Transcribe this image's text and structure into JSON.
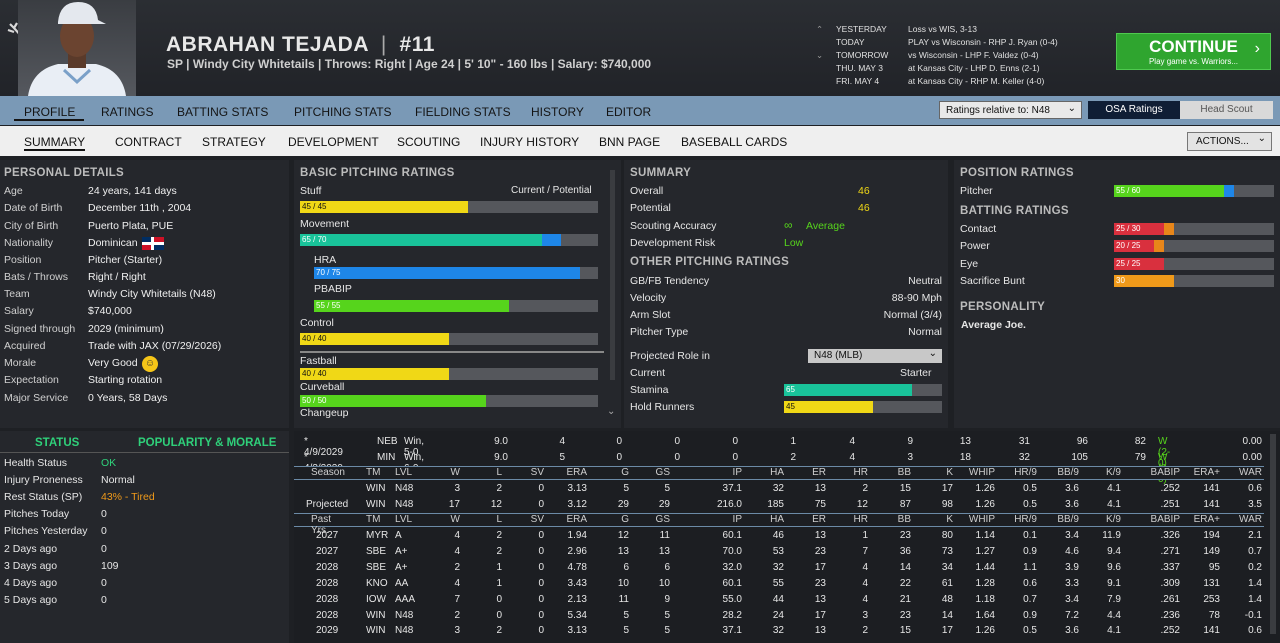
{
  "header": {
    "name": "ABRAHAN TEJADA",
    "number": "#11",
    "subtitle": "SP | Windy City Whitetails  |  Throws: Right  |  Age 24  |  5' 10\" - 160 lbs  |  Salary: $740,000",
    "sep": "|"
  },
  "schedule": [
    {
      "day": "YESTERDAY",
      "desc": "Loss vs WIS, 3-13"
    },
    {
      "day": "TODAY",
      "desc": "PLAY vs Wisconsin - RHP J. Ryan (0-4)"
    },
    {
      "day": "TOMORROW",
      "desc": "vs Wisconsin - LHP F. Valdez (0-4)"
    },
    {
      "day": "THU. MAY 3",
      "desc": "at Kansas City - LHP D. Enns (2-1)"
    },
    {
      "day": "FRI. MAY 4",
      "desc": "at Kansas City - RHP M. Keller (4-0)"
    }
  ],
  "continue": {
    "label": "CONTINUE",
    "sub": "Play game vs. Warriors..."
  },
  "nav1": [
    "PROFILE",
    "RATINGS",
    "BATTING STATS",
    "PITCHING STATS",
    "FIELDING STATS",
    "HISTORY",
    "EDITOR"
  ],
  "ratings_rel": "Ratings relative to: N48",
  "osa": "OSA Ratings",
  "head_scout": "Head Scout",
  "nav2": [
    "SUMMARY",
    "CONTRACT",
    "STRATEGY",
    "DEVELOPMENT",
    "SCOUTING",
    "INJURY HISTORY",
    "BNN PAGE",
    "BASEBALL CARDS"
  ],
  "actions": "ACTIONS...",
  "personal": {
    "title": "PERSONAL DETAILS",
    "rows": [
      {
        "l": "Age",
        "v": "24 years, 141 days"
      },
      {
        "l": "Date of Birth",
        "v": "December 11th , 2004"
      },
      {
        "l": "City of Birth",
        "v": "Puerto Plata, PUE"
      },
      {
        "l": "Nationality",
        "v": "Dominican"
      },
      {
        "l": "Position",
        "v": "Pitcher (Starter)"
      },
      {
        "l": "Bats / Throws",
        "v": "Right / Right"
      },
      {
        "l": "Team",
        "v": "Windy City Whitetails (N48)"
      },
      {
        "l": "Salary",
        "v": "$740,000"
      },
      {
        "l": "Signed through",
        "v": "2029 (minimum)"
      },
      {
        "l": "Acquired",
        "v": "Trade with JAX (07/29/2026)"
      },
      {
        "l": "Morale",
        "v": "Very Good"
      },
      {
        "l": "Expectation",
        "v": "Starting rotation"
      },
      {
        "l": "Major Service",
        "v": "0 Years, 58 Days"
      }
    ]
  },
  "pitching": {
    "title": "BASIC PITCHING RATINGS",
    "cp": "Current / Potential",
    "bars": [
      {
        "name": "Stuff",
        "label": "45 / 45",
        "cur": 45,
        "pot": 45,
        "color": "#f0d816"
      },
      {
        "name": "Movement",
        "label": "65 / 70",
        "cur": 65,
        "pot": 70,
        "color": "#19c39a"
      },
      {
        "name": "HRA",
        "label": "70 / 75",
        "cur": 70,
        "pot": 75,
        "color": "#1e86e8"
      },
      {
        "name": "PBABIP",
        "label": "55 / 55",
        "cur": 55,
        "pot": 55,
        "color": "#56d41c"
      },
      {
        "name": "Control",
        "label": "40 / 40",
        "cur": 40,
        "pot": 40,
        "color": "#f0d816"
      },
      {
        "name": "Fastball",
        "label": "40 / 40",
        "cur": 40,
        "pot": 40,
        "color": "#f0d816"
      },
      {
        "name": "Curveball",
        "label": "50 / 50",
        "cur": 50,
        "pot": 50,
        "color": "#56d41c"
      },
      {
        "name": "Changeup",
        "label": "",
        "cur": 0,
        "pot": 0,
        "color": "#f0d816"
      }
    ]
  },
  "summary": {
    "title": "SUMMARY",
    "overall_l": "Overall",
    "overall": "46",
    "potential_l": "Potential",
    "potential": "46",
    "acc_l": "Scouting Accuracy",
    "acc": "Average",
    "risk_l": "Development Risk",
    "risk": "Low",
    "other_title": "OTHER PITCHING RATINGS",
    "other": [
      {
        "l": "GB/FB Tendency",
        "v": "Neutral"
      },
      {
        "l": "Velocity",
        "v": "88-90 Mph"
      },
      {
        "l": "Arm Slot",
        "v": "Normal (3/4)"
      },
      {
        "l": "Pitcher Type",
        "v": "Normal"
      }
    ],
    "proj_l": "Projected Role in",
    "proj": "N48 (MLB)",
    "cur_l": "Current",
    "cur": "Starter",
    "stamina_l": "Stamina",
    "stamina": "65",
    "stamina_v": 65,
    "hold_l": "Hold Runners",
    "hold": "45",
    "hold_v": 45
  },
  "position": {
    "title": "POSITION RATINGS",
    "pitcher_l": "Pitcher",
    "pitcher": "55 / 60",
    "pcur": 55,
    "ppot": 60,
    "bat_title": "BATTING RATINGS",
    "bat": [
      {
        "l": "Contact",
        "v": "25 / 30",
        "cur": 25,
        "pot": 30
      },
      {
        "l": "Power",
        "v": "20 / 25",
        "cur": 20,
        "pot": 25
      },
      {
        "l": "Eye",
        "v": "25 / 25",
        "cur": 25,
        "pot": 25
      },
      {
        "l": "Sacrifice Bunt",
        "v": "30",
        "cur": 30,
        "pot": 30
      }
    ],
    "pers_title": "PERSONALITY",
    "pers": "Average Joe."
  },
  "status": {
    "tab1": "STATUS",
    "tab2": "POPULARITY & MORALE",
    "rows": [
      {
        "l": "Health Status",
        "v": "OK",
        "c": "#2fd07a"
      },
      {
        "l": "Injury Proneness",
        "v": "Normal",
        "c": "#e6e6e6"
      },
      {
        "l": "Rest Status (SP)",
        "v": "43% - Tired",
        "c": "#f09a1a"
      },
      {
        "l": "Pitches Today",
        "v": "0",
        "c": "#e6e6e6"
      },
      {
        "l": "Pitches Yesterday",
        "v": "0",
        "c": "#e6e6e6"
      },
      {
        "l": "2 Days ago",
        "v": "0",
        "c": "#e6e6e6"
      },
      {
        "l": "3 Days ago",
        "v": "109",
        "c": "#e6e6e6"
      },
      {
        "l": "4 Days ago",
        "v": "0",
        "c": "#e6e6e6"
      },
      {
        "l": "5 Days ago",
        "v": "0",
        "c": "#e6e6e6"
      }
    ]
  },
  "games": [
    [
      "* 4/9/2029",
      "NEB",
      "Win, 5-0",
      "9.0",
      "4",
      "0",
      "0",
      "0",
      "1",
      "4",
      "9",
      "13",
      "31",
      "96",
      "82",
      "W (2-0)",
      "0.00"
    ],
    [
      "* 4/3/2029",
      "MIN",
      "Win, 6-0",
      "9.0",
      "5",
      "0",
      "0",
      "0",
      "2",
      "4",
      "3",
      "18",
      "32",
      "105",
      "79",
      "W (1-0)",
      "0.00"
    ]
  ],
  "cols": [
    "TM",
    "LVL",
    "W",
    "L",
    "SV",
    "ERA",
    "G",
    "GS",
    "IP",
    "HA",
    "ER",
    "HR",
    "BB",
    "K",
    "WHIP",
    "HR/9",
    "BB/9",
    "K/9",
    "BABIP",
    "ERA+",
    "WAR"
  ],
  "season_label": "Season",
  "past_label": "Past Yrs.",
  "season": [
    [
      "",
      "WIN",
      "N48",
      "3",
      "2",
      "0",
      "3.13",
      "5",
      "5",
      "37.1",
      "32",
      "13",
      "2",
      "15",
      "17",
      "1.26",
      "0.5",
      "3.6",
      "4.1",
      ".252",
      "141",
      "0.6"
    ],
    [
      "Projected",
      "WIN",
      "N48",
      "17",
      "12",
      "0",
      "3.12",
      "29",
      "29",
      "216.0",
      "185",
      "75",
      "12",
      "87",
      "98",
      "1.26",
      "0.5",
      "3.6",
      "4.1",
      ".251",
      "141",
      "3.5"
    ]
  ],
  "past": [
    [
      "2027",
      "MYR",
      "A",
      "4",
      "2",
      "0",
      "1.94",
      "12",
      "11",
      "60.1",
      "46",
      "13",
      "1",
      "23",
      "80",
      "1.14",
      "0.1",
      "3.4",
      "11.9",
      ".326",
      "194",
      "2.1"
    ],
    [
      "2027",
      "SBE",
      "A+",
      "4",
      "2",
      "0",
      "2.96",
      "13",
      "13",
      "70.0",
      "53",
      "23",
      "7",
      "36",
      "73",
      "1.27",
      "0.9",
      "4.6",
      "9.4",
      ".271",
      "149",
      "0.7"
    ],
    [
      "2028",
      "SBE",
      "A+",
      "2",
      "1",
      "0",
      "4.78",
      "6",
      "6",
      "32.0",
      "32",
      "17",
      "4",
      "14",
      "34",
      "1.44",
      "1.1",
      "3.9",
      "9.6",
      ".337",
      "95",
      "0.2"
    ],
    [
      "2028",
      "KNO",
      "AA",
      "4",
      "1",
      "0",
      "3.43",
      "10",
      "10",
      "60.1",
      "55",
      "23",
      "4",
      "22",
      "61",
      "1.28",
      "0.6",
      "3.3",
      "9.1",
      ".309",
      "131",
      "1.4"
    ],
    [
      "2028",
      "IOW",
      "AAA",
      "7",
      "0",
      "0",
      "2.13",
      "11",
      "9",
      "55.0",
      "44",
      "13",
      "4",
      "21",
      "48",
      "1.18",
      "0.7",
      "3.4",
      "7.9",
      ".261",
      "253",
      "1.4"
    ],
    [
      "2028",
      "WIN",
      "N48",
      "2",
      "0",
      "0",
      "5.34",
      "5",
      "5",
      "28.2",
      "24",
      "17",
      "3",
      "23",
      "14",
      "1.64",
      "0.9",
      "7.2",
      "4.4",
      ".236",
      "78",
      "-0.1"
    ],
    [
      "2029",
      "WIN",
      "N48",
      "3",
      "2",
      "0",
      "3.13",
      "5",
      "5",
      "37.1",
      "32",
      "13",
      "2",
      "15",
      "17",
      "1.26",
      "0.5",
      "3.6",
      "4.1",
      ".252",
      "141",
      "0.6"
    ]
  ]
}
